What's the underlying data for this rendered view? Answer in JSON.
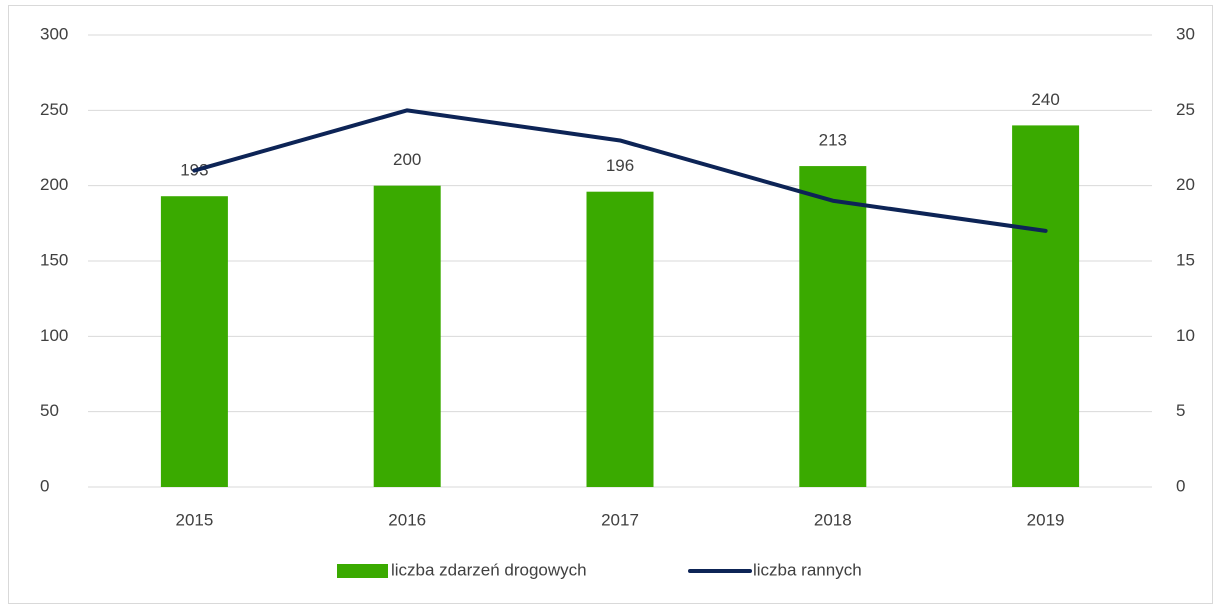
{
  "chart_data": {
    "type": "bar",
    "categories": [
      "2015",
      "2016",
      "2017",
      "2018",
      "2019"
    ],
    "series": [
      {
        "name": "liczba zdarzeń drogowych",
        "type": "bar",
        "color": "#3aaa00",
        "values": [
          193,
          200,
          196,
          213,
          240
        ]
      },
      {
        "name": "liczba rannych",
        "type": "line",
        "axis": "y2",
        "color": "#0d2456",
        "values": [
          21,
          25,
          23,
          19,
          17
        ]
      }
    ],
    "ylim": [
      0,
      300
    ],
    "yticks": [
      0,
      50,
      100,
      150,
      200,
      250,
      300
    ],
    "y2lim": [
      0,
      30
    ],
    "y2ticks": [
      0,
      5,
      10,
      15,
      20,
      25,
      30
    ],
    "grid": true,
    "legend": "bottom",
    "data_labels": [
      true,
      false
    ]
  }
}
